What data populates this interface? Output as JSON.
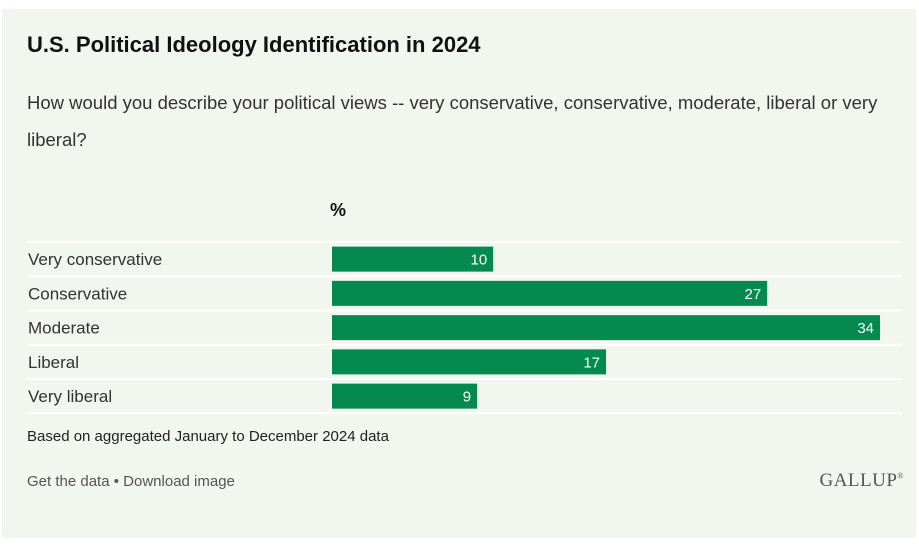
{
  "header": {
    "title": "U.S. Political Ideology Identification in 2024",
    "subtitle": "How would you describe your political views -- very conservative, conservative, moderate, liberal or very liberal?"
  },
  "chart_data": {
    "type": "bar",
    "orientation": "horizontal",
    "unit_label": "%",
    "categories": [
      "Very conservative",
      "Conservative",
      "Moderate",
      "Liberal",
      "Very liberal"
    ],
    "values": [
      10,
      27,
      34,
      17,
      9
    ],
    "bar_color": "#048a4f",
    "xlim": [
      0,
      34
    ]
  },
  "footnote": "Based on aggregated January to December 2024 data",
  "footer": {
    "get_data": "Get the data",
    "separator": "•",
    "download": "Download image",
    "logo_text": "GALLUP",
    "logo_mark": "®"
  }
}
